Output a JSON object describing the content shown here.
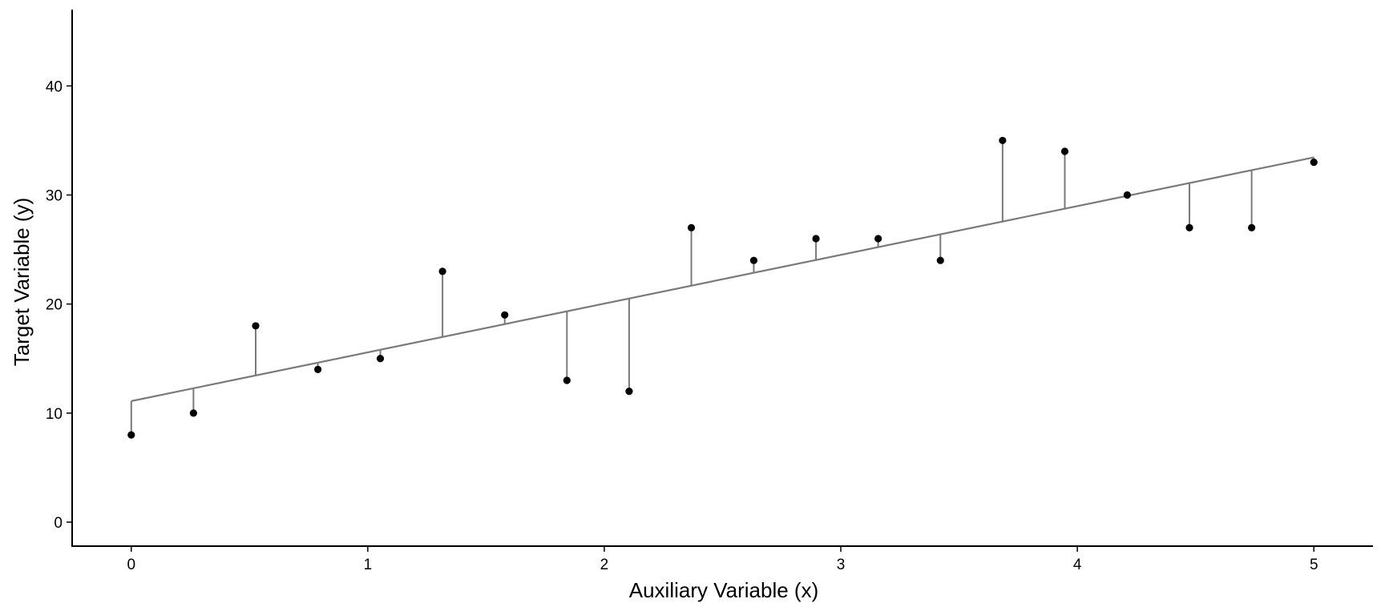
{
  "chart_data": {
    "type": "scatter",
    "title": "",
    "xlabel": "Auxiliary Variable (x)",
    "ylabel": "Target Variable (y)",
    "xlim": [
      -0.25,
      5.25
    ],
    "ylim": [
      -2.2,
      47
    ],
    "x_ticks": [
      0,
      1,
      2,
      3,
      4,
      5
    ],
    "y_ticks": [
      0,
      10,
      20,
      30,
      40
    ],
    "grid": false,
    "legend": "none",
    "fit_line": {
      "intercept": 11.1,
      "slope": 4.47,
      "color": "#7a7a7a"
    },
    "residual_color": "#7a7a7a",
    "point_color": "#000000",
    "points": [
      {
        "x": 0.0,
        "y": 8
      },
      {
        "x": 0.263,
        "y": 10
      },
      {
        "x": 0.526,
        "y": 18
      },
      {
        "x": 0.789,
        "y": 14
      },
      {
        "x": 1.053,
        "y": 15
      },
      {
        "x": 1.316,
        "y": 23
      },
      {
        "x": 1.579,
        "y": 19
      },
      {
        "x": 1.842,
        "y": 13
      },
      {
        "x": 2.105,
        "y": 12
      },
      {
        "x": 2.368,
        "y": 27
      },
      {
        "x": 2.632,
        "y": 24
      },
      {
        "x": 2.895,
        "y": 26
      },
      {
        "x": 3.158,
        "y": 26
      },
      {
        "x": 3.421,
        "y": 24
      },
      {
        "x": 3.684,
        "y": 35
      },
      {
        "x": 3.947,
        "y": 34
      },
      {
        "x": 4.211,
        "y": 30
      },
      {
        "x": 4.474,
        "y": 27
      },
      {
        "x": 4.737,
        "y": 27
      },
      {
        "x": 5.0,
        "y": 33
      }
    ]
  }
}
